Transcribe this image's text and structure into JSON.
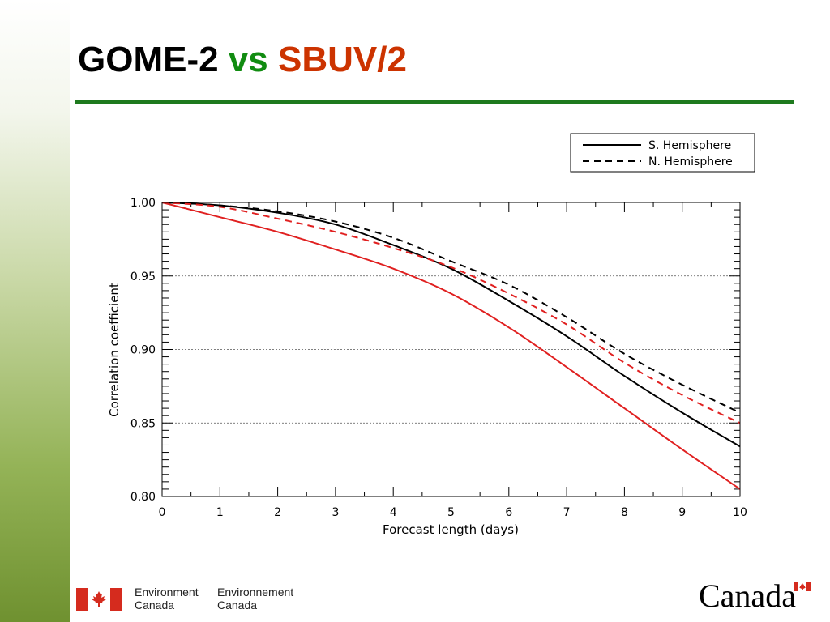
{
  "slide": {
    "title_part1": "GOME-2",
    "title_part2": "vs",
    "title_part3": "SBUV/2",
    "colors": {
      "title_vs": "#118c11",
      "title_sbuv": "#cc3300",
      "rule": "#1e7a1e"
    }
  },
  "chart_data": {
    "type": "line",
    "xlabel": "Forecast length (days)",
    "ylabel": "Correlation coefficient",
    "xlim": [
      0,
      10
    ],
    "ylim": [
      0.8,
      1.0
    ],
    "x_ticks": [
      "0",
      "1",
      "2",
      "3",
      "4",
      "5",
      "6",
      "7",
      "8",
      "9",
      "10"
    ],
    "y_ticks": [
      "0.80",
      "0.85",
      "0.90",
      "0.95",
      "1.00"
    ],
    "grid": "horizontal dotted at 0.85, 0.90, 0.95",
    "legend": {
      "placement": "top-right, above plot",
      "entries": [
        {
          "label": "S. Hemisphere",
          "style": "solid"
        },
        {
          "label": "N. Hemisphere",
          "style": "dashed"
        }
      ]
    },
    "x": [
      0,
      1,
      2,
      3,
      4,
      5,
      6,
      7,
      8,
      9,
      10
    ],
    "series": [
      {
        "hemisphere": "S. Hemisphere",
        "color": "#000000",
        "dash": "solid",
        "values": [
          1.0,
          0.998,
          0.993,
          0.985,
          0.971,
          0.955,
          0.933,
          0.909,
          0.882,
          0.857,
          0.834
        ]
      },
      {
        "hemisphere": "S. Hemisphere",
        "color": "#e02020",
        "dash": "solid",
        "values": [
          1.0,
          0.99,
          0.98,
          0.968,
          0.955,
          0.938,
          0.915,
          0.888,
          0.86,
          0.832,
          0.805
        ]
      },
      {
        "hemisphere": "N. Hemisphere",
        "color": "#000000",
        "dash": "dashed",
        "values": [
          1.0,
          0.998,
          0.994,
          0.987,
          0.976,
          0.96,
          0.944,
          0.922,
          0.897,
          0.876,
          0.857
        ]
      },
      {
        "hemisphere": "N. Hemisphere",
        "color": "#e02020",
        "dash": "dashed",
        "values": [
          1.0,
          0.997,
          0.989,
          0.98,
          0.969,
          0.956,
          0.938,
          0.917,
          0.891,
          0.869,
          0.85
        ]
      }
    ]
  },
  "footer": {
    "signature_en_line1": "Environment",
    "signature_en_line2": "Canada",
    "signature_fr_line1": "Environnement",
    "signature_fr_line2": "Canada",
    "wordmark": "Canada",
    "flag_color": "#d52b1e"
  }
}
